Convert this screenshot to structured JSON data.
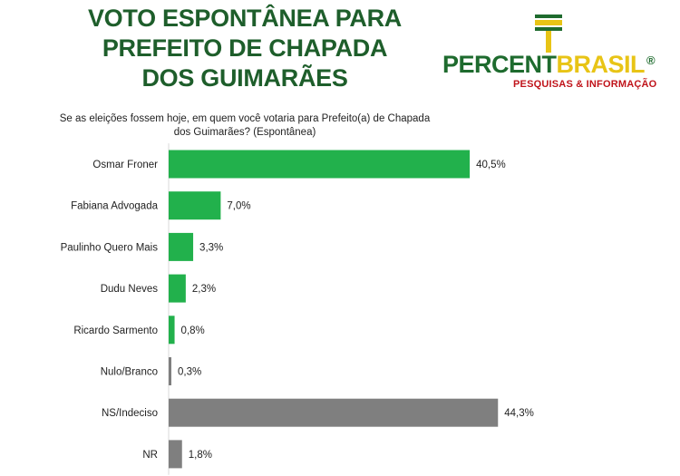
{
  "title_lines": [
    "VOTO ESPONTÂNEA PARA",
    "PREFEITO DE CHAPADA",
    "DOS GUIMARÃES"
  ],
  "logo": {
    "part1": "PERCENT",
    "part2": "BRASIL",
    "reg": "®",
    "sub": "PESQUISAS & INFORMAÇÃO"
  },
  "question": "Se as eleições fossem hoje, em quem você votaria para Prefeito(a) de Chapada dos Guimarães? (Espontânea)",
  "colors": {
    "candidate": "#22b14c",
    "other": "#7f7f7f",
    "title": "#1e5e2b"
  },
  "chart_data": {
    "type": "bar",
    "orientation": "horizontal",
    "title": "",
    "xlabel": "",
    "ylabel": "",
    "grid": false,
    "categories": [
      "Osmar Froner",
      "Fabiana Advogada",
      "Paulinho Quero Mais",
      "Dudu Neves",
      "Ricardo Sarmento",
      "Nulo/Branco",
      "NS/Indeciso",
      "NR"
    ],
    "values": [
      40.5,
      7.0,
      3.3,
      2.3,
      0.8,
      0.3,
      44.3,
      1.8
    ],
    "value_labels": [
      "40,5%",
      "7,0%",
      "3,3%",
      "2,3%",
      "0,8%",
      "0,3%",
      "44,3%",
      "1,8%"
    ],
    "bar_colors": [
      "#22b14c",
      "#22b14c",
      "#22b14c",
      "#22b14c",
      "#22b14c",
      "#7f7f7f",
      "#7f7f7f",
      "#7f7f7f"
    ],
    "xlim": [
      0,
      50
    ]
  }
}
